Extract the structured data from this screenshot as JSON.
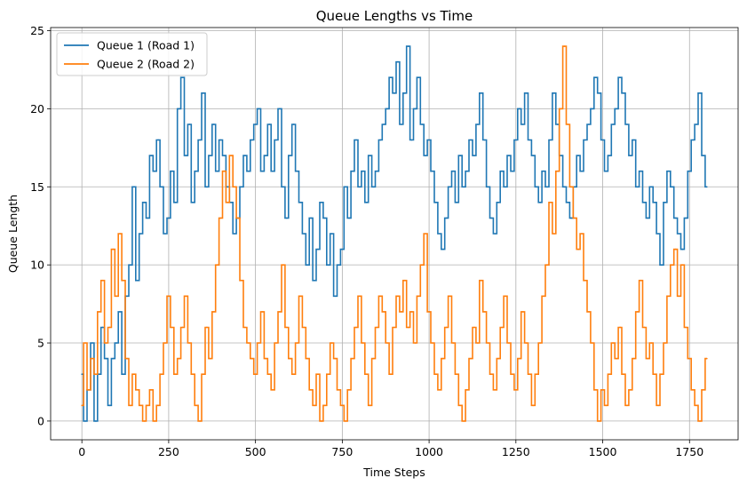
{
  "chart_data": {
    "type": "line",
    "title": "Queue Lengths vs Time",
    "xlabel": "Time Steps",
    "ylabel": "Queue Length",
    "xlim": [
      -90,
      1890
    ],
    "ylim": [
      -1.2,
      25.2
    ],
    "xticks": [
      0,
      250,
      500,
      750,
      1000,
      1250,
      1500,
      1750
    ],
    "yticks": [
      0,
      5,
      10,
      15,
      20,
      25
    ],
    "grid": true,
    "legend": "top-left",
    "series": [
      {
        "name": "Queue 1 (Road 1)",
        "color": "#1f77b4",
        "x": [
          0,
          10,
          20,
          30,
          40,
          50,
          60,
          70,
          80,
          90,
          100,
          110,
          120,
          130,
          140,
          150,
          160,
          170,
          180,
          190,
          200,
          210,
          220,
          230,
          240,
          250,
          260,
          270,
          280,
          290,
          300,
          310,
          320,
          330,
          340,
          350,
          360,
          370,
          380,
          390,
          400,
          410,
          420,
          430,
          440,
          450,
          460,
          470,
          480,
          490,
          500,
          510,
          520,
          530,
          540,
          550,
          560,
          570,
          580,
          590,
          600,
          610,
          620,
          630,
          640,
          650,
          660,
          670,
          680,
          690,
          700,
          710,
          720,
          730,
          740,
          750,
          760,
          770,
          780,
          790,
          800,
          810,
          820,
          830,
          840,
          850,
          860,
          870,
          880,
          890,
          900,
          910,
          920,
          930,
          940,
          950,
          960,
          970,
          980,
          990,
          1000,
          1010,
          1020,
          1030,
          1040,
          1050,
          1060,
          1070,
          1080,
          1090,
          1100,
          1110,
          1120,
          1130,
          1140,
          1150,
          1160,
          1170,
          1180,
          1190,
          1200,
          1210,
          1220,
          1230,
          1240,
          1250,
          1260,
          1270,
          1280,
          1290,
          1300,
          1310,
          1320,
          1330,
          1340,
          1350,
          1360,
          1370,
          1380,
          1390,
          1400,
          1410,
          1420,
          1430,
          1440,
          1450,
          1460,
          1470,
          1480,
          1490,
          1500,
          1510,
          1520,
          1530,
          1540,
          1550,
          1560,
          1570,
          1580,
          1590,
          1600,
          1610,
          1620,
          1630,
          1640,
          1650,
          1660,
          1670,
          1680,
          1690,
          1700,
          1710,
          1720,
          1730,
          1740,
          1750,
          1760,
          1770,
          1780,
          1790,
          1800
        ],
        "y": [
          3,
          0,
          2,
          5,
          0,
          3,
          6,
          4,
          1,
          4,
          5,
          7,
          3,
          8,
          10,
          15,
          9,
          12,
          14,
          13,
          17,
          16,
          18,
          15,
          12,
          13,
          16,
          14,
          20,
          22,
          17,
          19,
          14,
          16,
          18,
          21,
          15,
          17,
          19,
          16,
          18,
          17,
          15,
          14,
          12,
          13,
          15,
          17,
          16,
          18,
          19,
          20,
          16,
          17,
          19,
          16,
          18,
          20,
          15,
          13,
          17,
          19,
          16,
          14,
          12,
          10,
          13,
          9,
          11,
          14,
          13,
          10,
          12,
          8,
          10,
          11,
          15,
          13,
          16,
          18,
          15,
          16,
          14,
          17,
          15,
          16,
          18,
          19,
          20,
          22,
          21,
          23,
          19,
          21,
          24,
          18,
          20,
          22,
          19,
          17,
          18,
          16,
          14,
          12,
          11,
          13,
          15,
          16,
          14,
          17,
          15,
          16,
          18,
          17,
          19,
          21,
          18,
          15,
          13,
          12,
          14,
          16,
          15,
          17,
          16,
          18,
          20,
          19,
          21,
          18,
          17,
          15,
          14,
          16,
          15,
          18,
          21,
          19,
          17,
          15,
          14,
          13,
          15,
          17,
          16,
          18,
          19,
          20,
          22,
          21,
          18,
          16,
          17,
          19,
          20,
          22,
          21,
          19,
          17,
          18,
          15,
          16,
          14,
          13,
          15,
          14,
          12,
          10,
          14,
          16,
          15,
          13,
          12,
          11,
          13,
          16,
          18,
          19,
          21,
          17,
          15
        ]
      },
      {
        "name": "Queue 2 (Road 2)",
        "color": "#ff7f0e",
        "x": [
          0,
          10,
          20,
          30,
          40,
          50,
          60,
          70,
          80,
          90,
          100,
          110,
          120,
          130,
          140,
          150,
          160,
          170,
          180,
          190,
          200,
          210,
          220,
          230,
          240,
          250,
          260,
          270,
          280,
          290,
          300,
          310,
          320,
          330,
          340,
          350,
          360,
          370,
          380,
          390,
          400,
          410,
          420,
          430,
          440,
          450,
          460,
          470,
          480,
          490,
          500,
          510,
          520,
          530,
          540,
          550,
          560,
          570,
          580,
          590,
          600,
          610,
          620,
          630,
          640,
          650,
          660,
          670,
          680,
          690,
          700,
          710,
          720,
          730,
          740,
          750,
          760,
          770,
          780,
          790,
          800,
          810,
          820,
          830,
          840,
          850,
          860,
          870,
          880,
          890,
          900,
          910,
          920,
          930,
          940,
          950,
          960,
          970,
          980,
          990,
          1000,
          1010,
          1020,
          1030,
          1040,
          1050,
          1060,
          1070,
          1080,
          1090,
          1100,
          1110,
          1120,
          1130,
          1140,
          1150,
          1160,
          1170,
          1180,
          1190,
          1200,
          1210,
          1220,
          1230,
          1240,
          1250,
          1260,
          1270,
          1280,
          1290,
          1300,
          1310,
          1320,
          1330,
          1340,
          1350,
          1360,
          1370,
          1380,
          1390,
          1400,
          1410,
          1420,
          1430,
          1440,
          1450,
          1460,
          1470,
          1480,
          1490,
          1500,
          1510,
          1520,
          1530,
          1540,
          1550,
          1560,
          1570,
          1580,
          1590,
          1600,
          1610,
          1620,
          1630,
          1640,
          1650,
          1660,
          1670,
          1680,
          1690,
          1700,
          1710,
          1720,
          1730,
          1740,
          1750,
          1760,
          1770,
          1780,
          1790,
          1800
        ],
        "y": [
          1,
          5,
          2,
          4,
          3,
          7,
          9,
          5,
          6,
          11,
          8,
          12,
          9,
          4,
          1,
          3,
          2,
          1,
          0,
          1,
          2,
          0,
          1,
          3,
          5,
          8,
          6,
          3,
          4,
          6,
          8,
          5,
          3,
          1,
          0,
          3,
          6,
          4,
          7,
          10,
          13,
          16,
          14,
          17,
          15,
          13,
          9,
          6,
          5,
          4,
          3,
          5,
          7,
          4,
          3,
          2,
          5,
          7,
          10,
          6,
          4,
          3,
          5,
          8,
          6,
          4,
          2,
          1,
          3,
          0,
          1,
          3,
          5,
          4,
          2,
          1,
          0,
          2,
          4,
          6,
          8,
          5,
          3,
          1,
          4,
          6,
          8,
          7,
          5,
          3,
          6,
          8,
          7,
          9,
          6,
          7,
          5,
          8,
          10,
          12,
          7,
          5,
          3,
          2,
          4,
          6,
          8,
          5,
          3,
          1,
          0,
          2,
          4,
          6,
          5,
          9,
          7,
          5,
          3,
          2,
          4,
          6,
          8,
          5,
          3,
          2,
          4,
          7,
          5,
          3,
          1,
          3,
          5,
          8,
          10,
          14,
          12,
          16,
          20,
          24,
          19,
          15,
          13,
          11,
          12,
          9,
          7,
          5,
          2,
          0,
          2,
          1,
          3,
          5,
          4,
          6,
          3,
          1,
          2,
          4,
          7,
          9,
          6,
          4,
          5,
          3,
          1,
          3,
          5,
          8,
          10,
          11,
          8,
          10,
          6,
          4,
          2,
          1,
          0,
          2,
          4
        ]
      }
    ]
  }
}
